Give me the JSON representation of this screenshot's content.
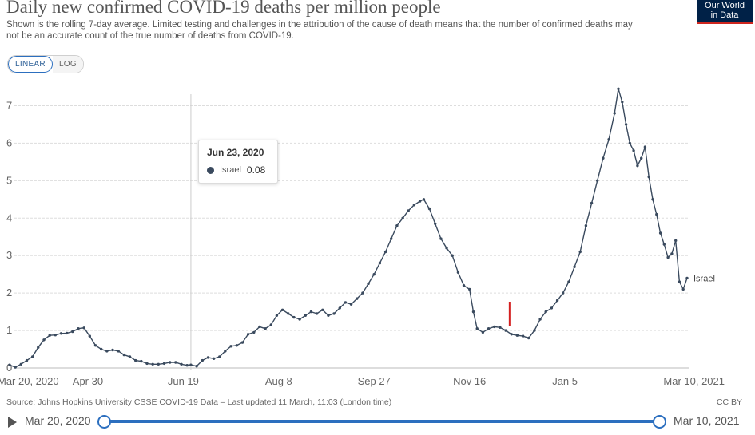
{
  "header": {
    "title": "Daily new confirmed COVID-19 deaths per million people",
    "subtitle": "Shown is the rolling 7-day average. Limited testing and challenges in the attribution of the cause of death means that the number of confirmed deaths may not be an accurate count of the true number of deaths from COVID-19.",
    "logo_line1": "Our World",
    "logo_line2": "in Data"
  },
  "controls": {
    "linear_label": "LINEAR",
    "log_label": "LOG",
    "active_scale": "LINEAR"
  },
  "tooltip": {
    "date": "Jun 23, 2020",
    "entity": "Israel",
    "value": "0.08"
  },
  "footer": {
    "source": "Source: Johns Hopkins University CSSE COVID-19 Data – Last updated 11 March, 11:03 (London time)",
    "license": "CC BY"
  },
  "timeline": {
    "start_label": "Mar 20, 2020",
    "end_label": "Mar 10, 2021"
  },
  "colors": {
    "series": "#3a4a5e",
    "accent": "#2c6fbf",
    "marker": "#d42020",
    "grid": "#dddddd",
    "hover_line": "#cccccc"
  },
  "chart_data": {
    "type": "line",
    "title": "Daily new confirmed COVID-19 deaths per million people",
    "xlabel": "",
    "ylabel": "",
    "x_range_days": [
      0,
      355
    ],
    "ylim": [
      0,
      7.5
    ],
    "y_ticks": [
      0,
      1,
      2,
      3,
      4,
      5,
      6,
      7
    ],
    "x_tick_days": [
      0,
      41,
      91,
      141,
      191,
      241,
      291,
      355
    ],
    "x_tick_labels": [
      "Mar 20, 2020",
      "Apr 30",
      "Jun 19",
      "Aug 8",
      "Sep 27",
      "Nov 16",
      "Jan 5",
      "Mar 10, 2021"
    ],
    "hover_day": 95,
    "highlight_day": 262,
    "series": [
      {
        "name": "Israel",
        "label": "Israel",
        "points": [
          [
            0,
            0.08
          ],
          [
            3,
            0.02
          ],
          [
            6,
            0.1
          ],
          [
            9,
            0.2
          ],
          [
            12,
            0.3
          ],
          [
            15,
            0.55
          ],
          [
            18,
            0.75
          ],
          [
            21,
            0.87
          ],
          [
            24,
            0.88
          ],
          [
            27,
            0.92
          ],
          [
            30,
            0.93
          ],
          [
            33,
            0.97
          ],
          [
            36,
            1.05
          ],
          [
            39,
            1.07
          ],
          [
            42,
            0.85
          ],
          [
            45,
            0.6
          ],
          [
            48,
            0.5
          ],
          [
            51,
            0.45
          ],
          [
            54,
            0.48
          ],
          [
            57,
            0.45
          ],
          [
            60,
            0.35
          ],
          [
            63,
            0.3
          ],
          [
            66,
            0.2
          ],
          [
            69,
            0.18
          ],
          [
            72,
            0.12
          ],
          [
            75,
            0.1
          ],
          [
            78,
            0.1
          ],
          [
            81,
            0.12
          ],
          [
            84,
            0.15
          ],
          [
            87,
            0.15
          ],
          [
            90,
            0.1
          ],
          [
            93,
            0.07
          ],
          [
            95,
            0.08
          ],
          [
            98,
            0.05
          ],
          [
            101,
            0.2
          ],
          [
            104,
            0.28
          ],
          [
            107,
            0.25
          ],
          [
            110,
            0.3
          ],
          [
            113,
            0.45
          ],
          [
            116,
            0.58
          ],
          [
            119,
            0.6
          ],
          [
            122,
            0.68
          ],
          [
            125,
            0.9
          ],
          [
            128,
            0.95
          ],
          [
            131,
            1.1
          ],
          [
            134,
            1.05
          ],
          [
            137,
            1.15
          ],
          [
            140,
            1.4
          ],
          [
            143,
            1.55
          ],
          [
            146,
            1.45
          ],
          [
            149,
            1.35
          ],
          [
            152,
            1.3
          ],
          [
            155,
            1.4
          ],
          [
            158,
            1.5
          ],
          [
            161,
            1.45
          ],
          [
            164,
            1.55
          ],
          [
            167,
            1.4
          ],
          [
            170,
            1.45
          ],
          [
            173,
            1.6
          ],
          [
            176,
            1.75
          ],
          [
            179,
            1.7
          ],
          [
            182,
            1.85
          ],
          [
            185,
            2.0
          ],
          [
            188,
            2.25
          ],
          [
            191,
            2.5
          ],
          [
            194,
            2.8
          ],
          [
            197,
            3.1
          ],
          [
            200,
            3.45
          ],
          [
            203,
            3.8
          ],
          [
            206,
            4.0
          ],
          [
            209,
            4.2
          ],
          [
            212,
            4.35
          ],
          [
            215,
            4.45
          ],
          [
            217,
            4.5
          ],
          [
            220,
            4.25
          ],
          [
            223,
            3.85
          ],
          [
            226,
            3.45
          ],
          [
            229,
            3.2
          ],
          [
            232,
            3.0
          ],
          [
            235,
            2.55
          ],
          [
            238,
            2.2
          ],
          [
            241,
            2.1
          ],
          [
            243,
            1.5
          ],
          [
            245,
            1.05
          ],
          [
            248,
            0.95
          ],
          [
            251,
            1.05
          ],
          [
            254,
            1.1
          ],
          [
            257,
            1.08
          ],
          [
            260,
            1.0
          ],
          [
            263,
            0.9
          ],
          [
            266,
            0.87
          ],
          [
            269,
            0.85
          ],
          [
            272,
            0.8
          ],
          [
            275,
            1.0
          ],
          [
            278,
            1.3
          ],
          [
            281,
            1.5
          ],
          [
            284,
            1.6
          ],
          [
            287,
            1.8
          ],
          [
            290,
            2.0
          ],
          [
            293,
            2.3
          ],
          [
            296,
            2.7
          ],
          [
            299,
            3.1
          ],
          [
            302,
            3.8
          ],
          [
            305,
            4.4
          ],
          [
            308,
            5.0
          ],
          [
            311,
            5.6
          ],
          [
            314,
            6.1
          ],
          [
            317,
            6.8
          ],
          [
            319,
            7.45
          ],
          [
            321,
            7.1
          ],
          [
            323,
            6.5
          ],
          [
            325,
            6.0
          ],
          [
            327,
            5.8
          ],
          [
            329,
            5.4
          ],
          [
            331,
            5.6
          ],
          [
            333,
            5.9
          ],
          [
            335,
            5.1
          ],
          [
            337,
            4.5
          ],
          [
            339,
            4.1
          ],
          [
            341,
            3.6
          ],
          [
            343,
            3.3
          ],
          [
            345,
            2.95
          ],
          [
            347,
            3.05
          ],
          [
            349,
            3.4
          ],
          [
            351,
            2.3
          ],
          [
            353,
            2.1
          ],
          [
            355,
            2.4
          ]
        ]
      }
    ]
  }
}
